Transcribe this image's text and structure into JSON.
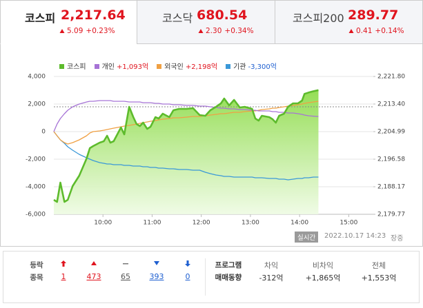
{
  "tabs": [
    {
      "name": "코스피",
      "value": "2,217.64",
      "change": "5.09",
      "rate": "+0.23%"
    },
    {
      "name": "코스닥",
      "value": "680.54",
      "change": "2.30",
      "rate": "+0.34%"
    },
    {
      "name": "코스피200",
      "value": "289.77",
      "change": "0.41",
      "rate": "+0.14%"
    }
  ],
  "chart_data": {
    "type": "line",
    "grid": true,
    "x": [
      "09:00",
      "09:04",
      "09:08",
      "09:13",
      "09:17",
      "09:23",
      "09:31",
      "09:40",
      "09:44",
      "09:48",
      "09:56",
      "10:01",
      "10:05",
      "10:09",
      "10:13",
      "10:22",
      "10:26",
      "10:32",
      "10:37",
      "10:41",
      "10:45",
      "10:49",
      "10:54",
      "10:58",
      "11:04",
      "11:08",
      "11:13",
      "11:21",
      "11:26",
      "11:33",
      "11:42",
      "11:50",
      "11:58",
      "12:05",
      "12:11",
      "12:18",
      "12:24",
      "12:28",
      "12:34",
      "12:40",
      "12:47",
      "12:53",
      "13:02",
      "13:06",
      "13:10",
      "13:14",
      "13:23",
      "13:27",
      "13:31",
      "13:35",
      "13:41",
      "13:46",
      "13:52",
      "13:58",
      "14:03",
      "14:06",
      "14:11",
      "14:17",
      "14:23"
    ],
    "xlim": [
      "09:00",
      "15:30"
    ],
    "xticks": [
      "10:00",
      "11:00",
      "12:00",
      "13:00",
      "14:00",
      "15:00"
    ],
    "ylim": [
      -6000,
      4000
    ],
    "yticks": [
      {
        "value": 4000,
        "label": "4,000"
      },
      {
        "value": 2000,
        "label": "2,000"
      },
      0,
      {
        "value": -2000,
        "label": "-2,000"
      },
      {
        "value": -4000,
        "label": "-4,000"
      },
      {
        "value": -6000,
        "label": "-6,000"
      }
    ],
    "y2lim": [
      2179.77,
      2221.8
    ],
    "y2ticks": [
      {
        "value": 2221.8,
        "label": "2,221.80"
      },
      {
        "value": 2213.4,
        "label": "2,213.40"
      },
      {
        "value": 2204.99,
        "label": "2,204.99"
      },
      {
        "value": 2196.58,
        "label": "2,196.58"
      },
      {
        "value": 2188.17,
        "label": "2,188.17"
      },
      {
        "value": 2179.77,
        "label": "2,179.77"
      }
    ],
    "prev_close": 2212.55,
    "series": [
      {
        "name": "코스피",
        "color": "#5dbb2c",
        "axis": "y2",
        "fill": true,
        "values": [
          2184.18,
          2183.55,
          2189.44,
          2183.55,
          2184.18,
          2188.39,
          2191.54,
          2196.79,
          2199.94,
          2200.57,
          2201.63,
          2202.05,
          2203.73,
          2201.63,
          2202.05,
          2206.25,
          2204.15,
          2212.55,
          2209.4,
          2207.3,
          2206.67,
          2207.72,
          2205.83,
          2206.46,
          2209.4,
          2208.98,
          2210.45,
          2209.4,
          2211.5,
          2211.92,
          2211.92,
          2212.13,
          2210.03,
          2209.82,
          2211.5,
          2212.55,
          2213.6,
          2215.08,
          2212.97,
          2214.65,
          2212.34,
          2212.55,
          2211.92,
          2208.98,
          2208.35,
          2209.82,
          2209.4,
          2208.77,
          2207.72,
          2209.82,
          2210.45,
          2212.55,
          2213.6,
          2213.6,
          2214.44,
          2216.5,
          2216.9,
          2217.3,
          2217.64
        ]
      },
      {
        "name": "개인",
        "summary": "+1,093억",
        "color": "#a673d6",
        "values": [
          0,
          550,
          950,
          1300,
          1550,
          1800,
          2000,
          2150,
          2200,
          2200,
          2250,
          2250,
          2250,
          2250,
          2200,
          2200,
          2200,
          2150,
          2150,
          2150,
          2150,
          2100,
          2100,
          2100,
          2050,
          2050,
          2000,
          2000,
          1950,
          1950,
          1900,
          1900,
          1850,
          1850,
          1800,
          1750,
          1700,
          1700,
          1650,
          1650,
          1600,
          1600,
          1550,
          1550,
          1500,
          1500,
          1500,
          1450,
          1450,
          1400,
          1400,
          1350,
          1350,
          1300,
          1250,
          1200,
          1150,
          1120,
          1093
        ]
      },
      {
        "name": "외국인",
        "summary": "+2,198억",
        "color": "#f0a043",
        "values": [
          0,
          -300,
          -600,
          -800,
          -900,
          -800,
          -600,
          -300,
          -100,
          0,
          50,
          100,
          150,
          200,
          250,
          350,
          400,
          450,
          500,
          550,
          600,
          650,
          700,
          750,
          800,
          850,
          900,
          950,
          1000,
          1000,
          1050,
          1100,
          1100,
          1150,
          1200,
          1250,
          1300,
          1300,
          1350,
          1400,
          1400,
          1450,
          1500,
          1500,
          1550,
          1600,
          1650,
          1700,
          1700,
          1750,
          1800,
          1850,
          1900,
          1950,
          2000,
          2050,
          2100,
          2150,
          2198
        ]
      },
      {
        "name": "기관",
        "summary": "-3,300억",
        "color": "#3a98d8",
        "values": [
          0,
          -300,
          -600,
          -850,
          -1100,
          -1350,
          -1650,
          -1900,
          -2000,
          -2100,
          -2250,
          -2300,
          -2350,
          -2350,
          -2400,
          -2400,
          -2450,
          -2450,
          -2500,
          -2500,
          -2500,
          -2550,
          -2550,
          -2600,
          -2600,
          -2650,
          -2650,
          -2700,
          -2700,
          -2750,
          -2750,
          -2800,
          -2800,
          -2950,
          -3050,
          -3150,
          -3200,
          -3250,
          -3250,
          -3300,
          -3300,
          -3300,
          -3300,
          -3350,
          -3350,
          -3350,
          -3400,
          -3400,
          -3400,
          -3450,
          -3450,
          -3500,
          -3450,
          -3400,
          -3400,
          -3350,
          -3350,
          -3300,
          -3300
        ]
      }
    ]
  },
  "status": {
    "badge": "실시간",
    "timestamp": "2022.10.17 14:23",
    "state": "장중"
  },
  "breadth": {
    "label": [
      "등락",
      "종목"
    ],
    "counts": [
      "1",
      "473",
      "65",
      "393",
      "0"
    ]
  },
  "program": {
    "label": [
      "프로그램",
      "매매동향"
    ],
    "items": [
      {
        "name": "차익",
        "value": "-312억"
      },
      {
        "name": "비차익",
        "value": "+1,865억"
      },
      {
        "name": "전체",
        "value": "+1,553억"
      }
    ]
  }
}
